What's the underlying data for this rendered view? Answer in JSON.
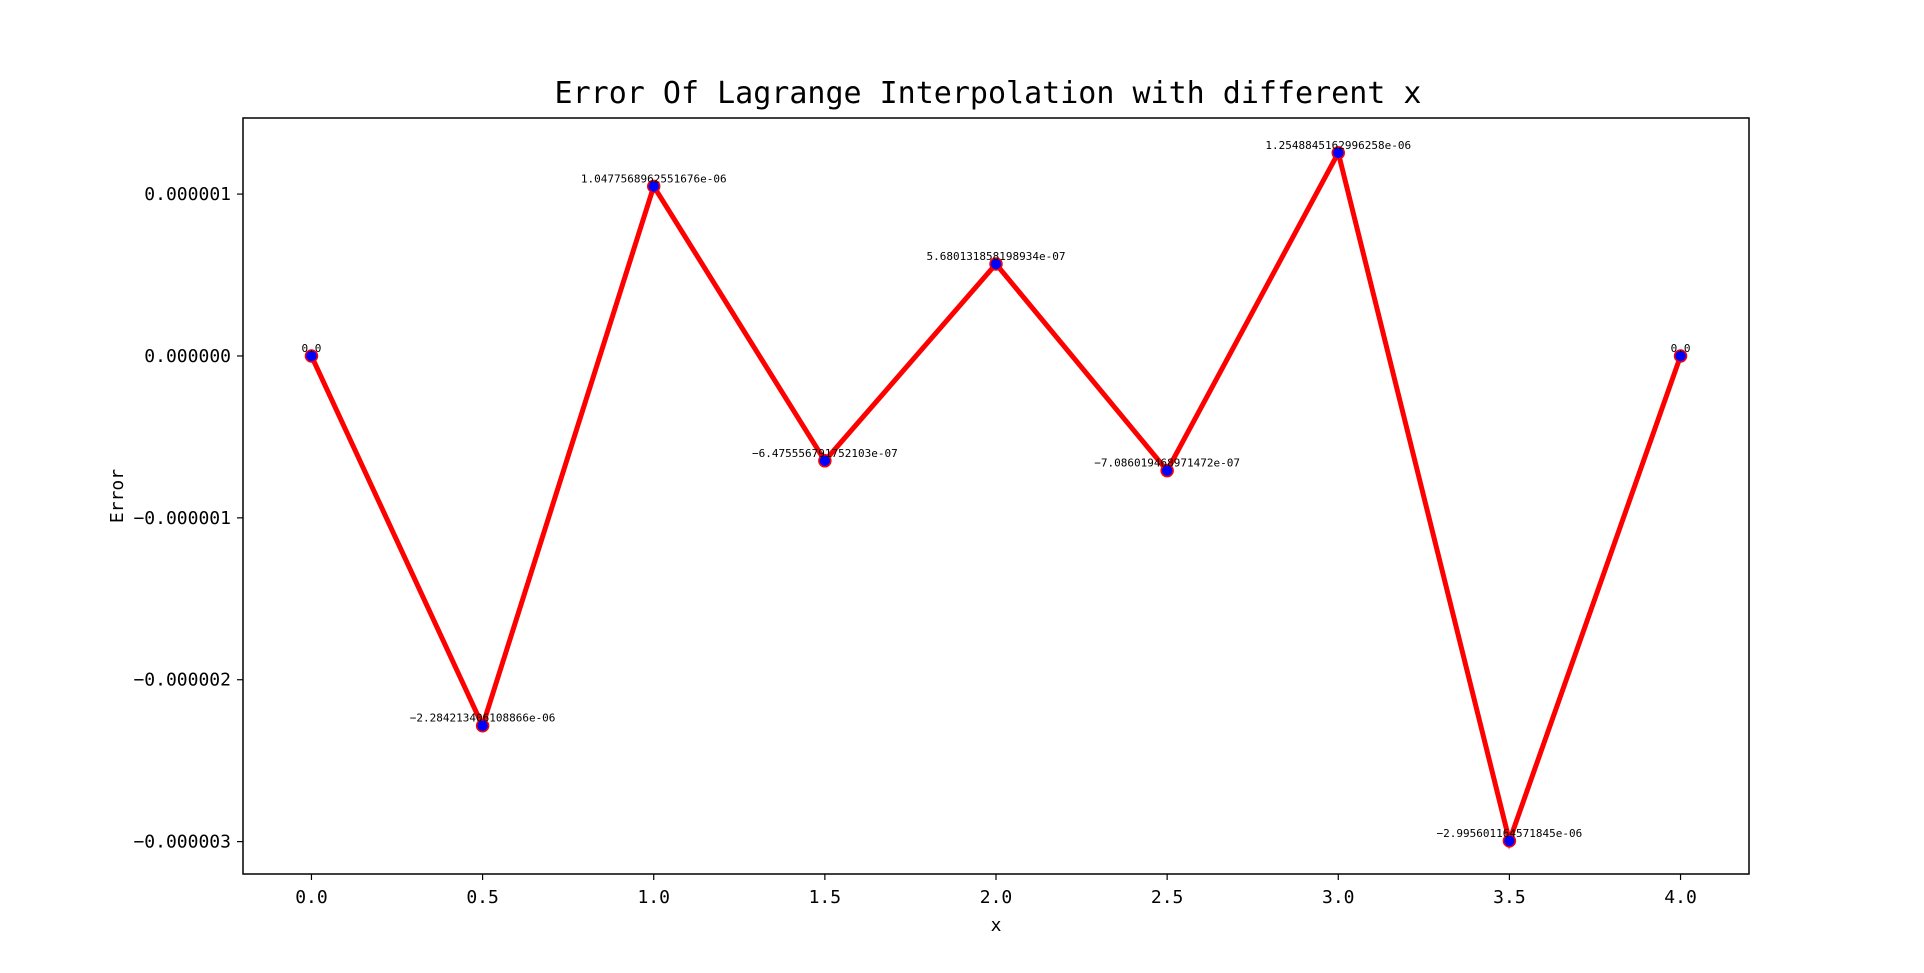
{
  "chart_data": {
    "type": "line",
    "title": "Error Of Lagrange Interpolation with different x",
    "xlabel": "x",
    "ylabel": "Error",
    "xlim": [
      -0.2,
      4.2
    ],
    "ylim": [
      -3.2e-06,
      1.47e-06
    ],
    "x_ticks": [
      0.0,
      0.5,
      1.0,
      1.5,
      2.0,
      2.5,
      3.0,
      3.5,
      4.0
    ],
    "x_tick_labels": [
      "0.0",
      "0.5",
      "1.0",
      "1.5",
      "2.0",
      "2.5",
      "3.0",
      "3.5",
      "4.0"
    ],
    "y_ticks": [
      1e-06,
      0.0,
      -1e-06,
      -2e-06,
      -3e-06
    ],
    "y_tick_labels": [
      "0.000001",
      "0.000000",
      "−0.000001",
      "−0.000002",
      "−0.000003"
    ],
    "grid": false,
    "line_color": "#ff0000",
    "marker_color": "#0000ff",
    "marker_edge_color": "#ff0000",
    "series": [
      {
        "x": [
          0.0,
          0.5,
          1.0,
          1.5,
          2.0,
          2.5,
          3.0,
          3.5,
          4.0
        ],
        "y": [
          0.0,
          -2.284213406108866e-06,
          1.0477568962551677e-06,
          -6.475556791752103e-07,
          5.680131858198934e-07,
          -7.086019468971472e-07,
          1.2548845162996258e-06,
          -2.995601164571845e-06,
          0.0
        ],
        "labels": [
          "0.0",
          "−2.284213406108866e-06",
          "1.0477568962551676e-06",
          "−6.475556791752103e-07",
          "5.680131858198934e-07",
          "−7.086019468971472e-07",
          "1.2548845162996258e-06",
          "−2.995601164571845e-06",
          "0.0"
        ]
      }
    ]
  }
}
